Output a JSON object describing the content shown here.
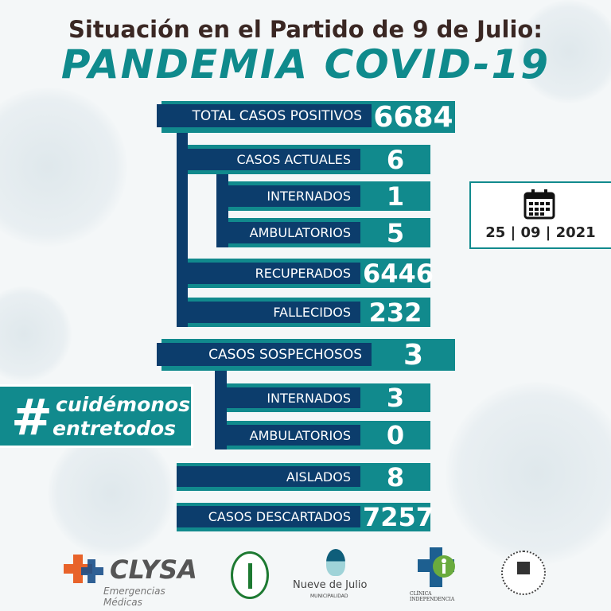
{
  "header": {
    "subtitle": "Situación en el Partido de 9 de Julio:",
    "title": "PANDEMIA COVID-19"
  },
  "colors": {
    "teal": "#118a8d",
    "navy": "#0c3d6c",
    "title_text": "#3a2723"
  },
  "positivos": {
    "total": {
      "label": "TOTAL CASOS POSITIVOS",
      "value": "6684"
    },
    "actuales": {
      "label": "CASOS ACTUALES",
      "value": "6"
    },
    "internados": {
      "label": "INTERNADOS",
      "value": "1"
    },
    "ambulatorios": {
      "label": "AMBULATORIOS",
      "value": "5"
    },
    "recuperados": {
      "label": "RECUPERADOS",
      "value": "6446"
    },
    "fallecidos": {
      "label": "FALLECIDOS",
      "value": "232"
    }
  },
  "sospechosos": {
    "total": {
      "label": "CASOS SOSPECHOSOS",
      "value": "3"
    },
    "internados": {
      "label": "INTERNADOS",
      "value": "3"
    },
    "ambulatorios": {
      "label": "AMBULATORIOS",
      "value": "0"
    }
  },
  "aislados": {
    "label": "AISLADOS",
    "value": "8"
  },
  "descartados": {
    "label": "CASOS DESCARTADOS",
    "value": "7257"
  },
  "date": {
    "icon": "calendar-icon",
    "day": "25",
    "month": "09",
    "year": "2021"
  },
  "hashtag": {
    "symbol": "#",
    "line1": "cuidémonos",
    "line2": "entretodos"
  },
  "logos": [
    {
      "name": "CLYSA",
      "tagline": "Emergencias Médicas"
    },
    {
      "name": "Nueve de Julio",
      "tagline": "MUNICIPALIDAD"
    },
    {
      "name": "CLÍNICA INDEPENDENCIA"
    }
  ]
}
